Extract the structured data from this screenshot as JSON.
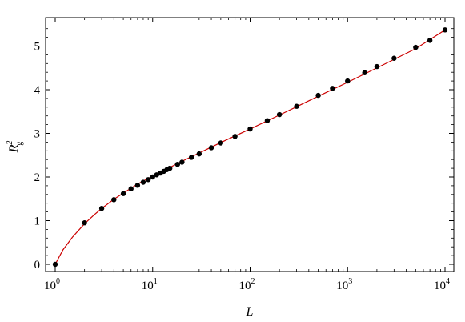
{
  "chart_data": {
    "type": "scatter",
    "title": "",
    "xlabel": "L",
    "ylabel": {
      "base": "R",
      "superscript": "2",
      "subscript": "g"
    },
    "x_scale": "log",
    "xlim": [
      1,
      10000
    ],
    "ylim": [
      -0.15,
      5.5
    ],
    "grid": false,
    "legend": "none",
    "x_ticks": [
      {
        "value": 1,
        "base": "10",
        "exp": "0"
      },
      {
        "value": 10,
        "base": "10",
        "exp": "1"
      },
      {
        "value": 100,
        "base": "10",
        "exp": "2"
      },
      {
        "value": 1000,
        "base": "10",
        "exp": "3"
      },
      {
        "value": 10000,
        "base": "10",
        "exp": "4"
      }
    ],
    "y_ticks": [
      {
        "value": 0,
        "label": "0"
      },
      {
        "value": 1,
        "label": "1"
      },
      {
        "value": 2,
        "label": "2"
      },
      {
        "value": 3,
        "label": "3"
      },
      {
        "value": 4,
        "label": "4"
      },
      {
        "value": 5,
        "label": "5"
      }
    ],
    "series": [
      {
        "kind": "points",
        "color": "#000000",
        "points": [
          {
            "x": 1,
            "y": 0.0
          },
          {
            "x": 2,
            "y": 0.95
          },
          {
            "x": 3,
            "y": 1.28
          },
          {
            "x": 4,
            "y": 1.48
          },
          {
            "x": 5,
            "y": 1.62
          },
          {
            "x": 6,
            "y": 1.73
          },
          {
            "x": 7,
            "y": 1.81
          },
          {
            "x": 8,
            "y": 1.88
          },
          {
            "x": 9,
            "y": 1.94
          },
          {
            "x": 10,
            "y": 2.0
          },
          {
            "x": 11,
            "y": 2.05
          },
          {
            "x": 12,
            "y": 2.09
          },
          {
            "x": 13,
            "y": 2.13
          },
          {
            "x": 14,
            "y": 2.17
          },
          {
            "x": 15,
            "y": 2.2
          },
          {
            "x": 18,
            "y": 2.29
          },
          {
            "x": 20,
            "y": 2.34
          },
          {
            "x": 25,
            "y": 2.45
          },
          {
            "x": 30,
            "y": 2.53
          },
          {
            "x": 40,
            "y": 2.67
          },
          {
            "x": 50,
            "y": 2.78
          },
          {
            "x": 70,
            "y": 2.93
          },
          {
            "x": 100,
            "y": 3.1
          },
          {
            "x": 150,
            "y": 3.29
          },
          {
            "x": 200,
            "y": 3.43
          },
          {
            "x": 300,
            "y": 3.62
          },
          {
            "x": 500,
            "y": 3.87
          },
          {
            "x": 700,
            "y": 4.03
          },
          {
            "x": 1000,
            "y": 4.2
          },
          {
            "x": 1500,
            "y": 4.39
          },
          {
            "x": 2000,
            "y": 4.53
          },
          {
            "x": 3000,
            "y": 4.72
          },
          {
            "x": 5000,
            "y": 4.97
          },
          {
            "x": 7000,
            "y": 5.13
          },
          {
            "x": 10000,
            "y": 5.37
          }
        ]
      },
      {
        "kind": "curve",
        "color": "#cc0000",
        "points": [
          {
            "x": 1,
            "y": 0.0
          },
          {
            "x": 1.2,
            "y": 0.33
          },
          {
            "x": 1.5,
            "y": 0.62
          },
          {
            "x": 2,
            "y": 0.93
          },
          {
            "x": 2.5,
            "y": 1.13
          },
          {
            "x": 3,
            "y": 1.28
          },
          {
            "x": 4,
            "y": 1.49
          },
          {
            "x": 5,
            "y": 1.63
          },
          {
            "x": 7,
            "y": 1.84
          },
          {
            "x": 10,
            "y": 2.02
          },
          {
            "x": 15,
            "y": 2.22
          },
          {
            "x": 20,
            "y": 2.36
          },
          {
            "x": 30,
            "y": 2.55
          },
          {
            "x": 50,
            "y": 2.79
          },
          {
            "x": 100,
            "y": 3.1
          },
          {
            "x": 200,
            "y": 3.42
          },
          {
            "x": 500,
            "y": 3.85
          },
          {
            "x": 1000,
            "y": 4.17
          },
          {
            "x": 2000,
            "y": 4.5
          },
          {
            "x": 5000,
            "y": 4.94
          },
          {
            "x": 10000,
            "y": 5.37
          }
        ]
      }
    ]
  }
}
